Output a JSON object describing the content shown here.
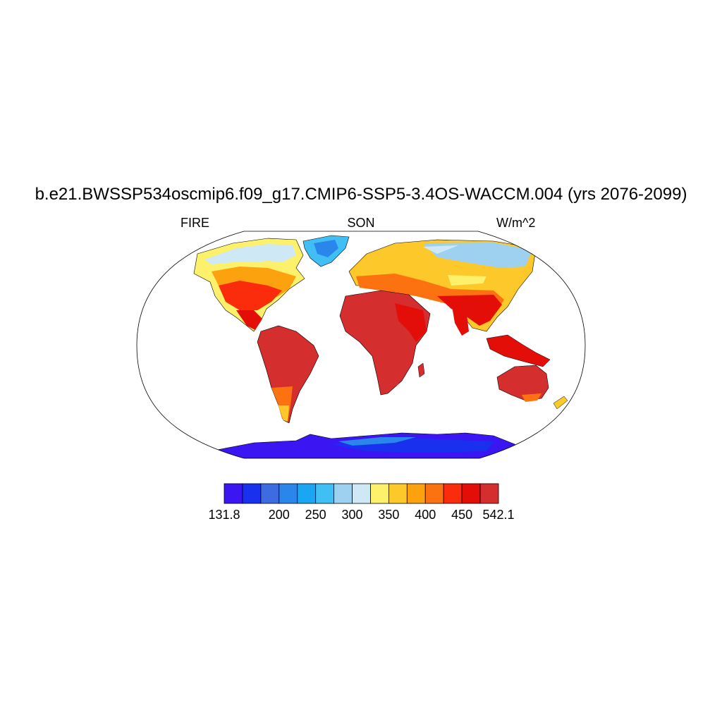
{
  "figure": {
    "title": "b.e21.BWSSP534oscmip6.f09_g17.CMIP6-SSP5-3.4OS-WACCM.004 (yrs 2076-2099)",
    "left_string": "FIRE",
    "center_string": "SON",
    "right_string": "W/m^2"
  },
  "colorbar": {
    "colors": [
      "#3b16f2",
      "#1930ee",
      "#3d6be0",
      "#2b86ec",
      "#1aa6f2",
      "#40bff5",
      "#9dd1ef",
      "#cfe8f6",
      "#fdf06a",
      "#fdc82a",
      "#fda20f",
      "#fd7210",
      "#fb2c0c",
      "#e30e07",
      "#d42e2e"
    ],
    "labels": [
      "131.8",
      "200",
      "250",
      "300",
      "350",
      "400",
      "450",
      "542.1"
    ]
  },
  "map": {
    "projection": "Robinson",
    "variable": "FIRE",
    "units": "W/m^2",
    "range": [
      131.8,
      542.1
    ]
  }
}
